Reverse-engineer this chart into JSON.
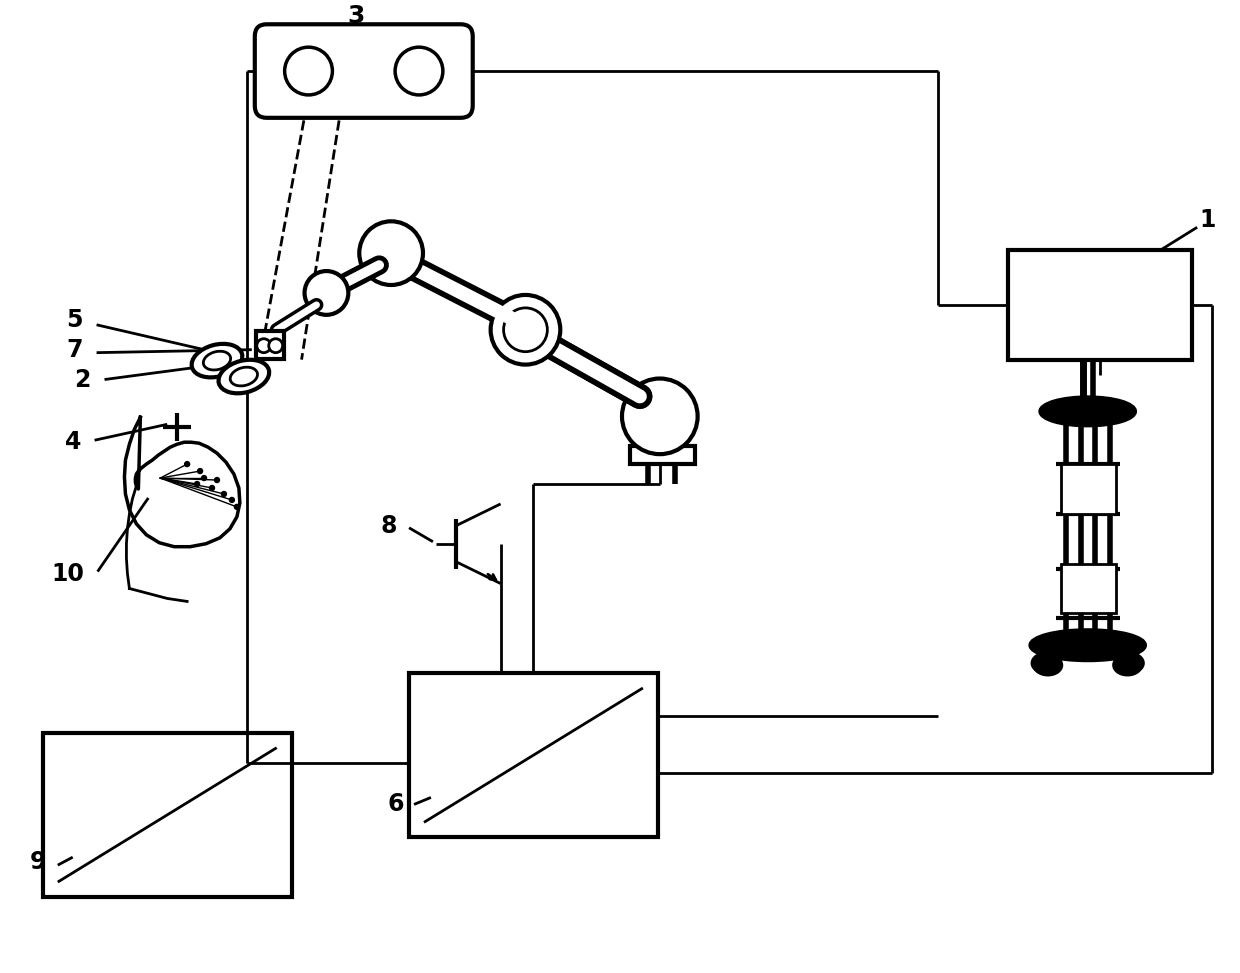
{
  "bg_color": "#ffffff",
  "lc": "#000000",
  "lw": 2.0,
  "tlw": 3.0,
  "figsize": [
    12.4,
    9.73
  ],
  "xlim": [
    0,
    1240
  ],
  "ylim": [
    0,
    973
  ]
}
